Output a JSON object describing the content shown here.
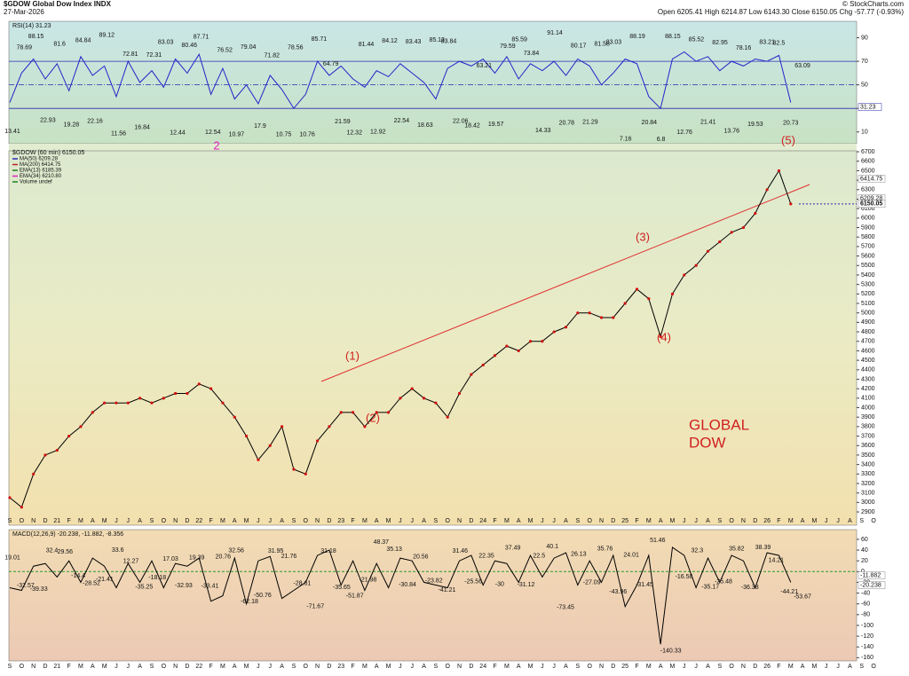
{
  "header": {
    "symbol": "$GDOW Global Dow Index INDX",
    "date": "27-Mar-2026",
    "quote": "Open 6205.41  High 6214.87  Low 6143.30  Close 6150.05  Chg -57.77 (-0.93%)",
    "credit": "© StockCharts.com"
  },
  "chart_data": [
    {
      "type": "line",
      "title": "RSI(14) 31.23",
      "color": "#2424c8",
      "values": [
        35,
        60,
        72,
        55,
        68,
        45,
        74,
        58,
        66,
        40,
        70,
        52,
        62,
        48,
        72,
        60,
        76,
        42,
        64,
        38,
        50,
        34,
        58,
        46,
        30,
        42,
        70,
        58,
        66,
        55,
        48,
        62,
        57,
        68,
        60,
        52,
        38,
        64,
        70,
        66,
        72,
        60,
        74,
        55,
        68,
        62,
        70,
        58,
        72,
        66,
        50,
        60,
        72,
        68,
        40,
        30,
        72,
        78,
        70,
        74,
        62,
        70,
        66,
        72,
        70,
        75,
        35,
        null,
        null,
        null,
        null,
        null,
        null,
        null
      ],
      "peak_labels": [
        13.41,
        78.69,
        88.15,
        22.93,
        81.6,
        19.28,
        84.84,
        22.16,
        89.12,
        11.56,
        72.81,
        16.84,
        72.31,
        83.03,
        12.44,
        80.46,
        87.71,
        12.54,
        76.52,
        10.97,
        79.04,
        17.9,
        71.82,
        10.75,
        78.56,
        10.76,
        85.71,
        64.79,
        21.59,
        12.32,
        81.44,
        12.92,
        84.12,
        22.54,
        83.43,
        18.63,
        85.13,
        83.84,
        22.06,
        18.42,
        63.21,
        19.57,
        79.59,
        85.59,
        73.84,
        14.33,
        91.14,
        20.78,
        80.17,
        21.29,
        81.58,
        83.03,
        7.16,
        88.19,
        20.84,
        6.8,
        88.15,
        12.76,
        85.52,
        21.41,
        82.95,
        13.76,
        78.16,
        19.53,
        83.21,
        82.5,
        20.73,
        63.09
      ],
      "last_value": 31.23,
      "ref_levels": [
        70,
        50,
        30
      ],
      "ylim": [
        0,
        104
      ],
      "yticks": [
        10,
        30,
        50,
        70,
        90
      ]
    },
    {
      "type": "line",
      "title": "$GDOW (60 min) 6150.05",
      "color": "#000000",
      "marker_color": "#d01010",
      "legend": [
        "MA(50) 6209.28",
        "MA(200) 6414.75",
        "EMA(13) 6185.39",
        "EMA(34) 6210.80",
        "Volume undef"
      ],
      "categories": [
        "S",
        "O",
        "N",
        "D",
        "21",
        "F",
        "M",
        "A",
        "M",
        "J",
        "J",
        "A",
        "S",
        "O",
        "N",
        "D",
        "22",
        "F",
        "M",
        "A",
        "M",
        "J",
        "J",
        "A",
        "S",
        "O",
        "N",
        "D",
        "23",
        "F",
        "M",
        "A",
        "M",
        "J",
        "J",
        "A",
        "S",
        "O",
        "N",
        "D",
        "24",
        "F",
        "M",
        "A",
        "M",
        "J",
        "J",
        "A",
        "S",
        "O",
        "N",
        "D",
        "25",
        "F",
        "M",
        "A",
        "M",
        "J",
        "J",
        "A",
        "S",
        "O",
        "N",
        "D",
        "26",
        "F",
        "M",
        "A",
        "M",
        "J",
        "J",
        "A",
        "S",
        "O"
      ],
      "values": [
        3050,
        2950,
        3300,
        3500,
        3550,
        3700,
        3800,
        3950,
        4050,
        4050,
        4050,
        4100,
        4050,
        4100,
        4150,
        4150,
        4250,
        4200,
        4050,
        3900,
        3700,
        3450,
        3600,
        3800,
        3350,
        3300,
        3650,
        3800,
        3950,
        3950,
        3800,
        3950,
        3950,
        4100,
        4200,
        4100,
        4050,
        3900,
        4150,
        4350,
        4450,
        4550,
        4650,
        4600,
        4700,
        4700,
        4800,
        4850,
        5000,
        5000,
        4950,
        4950,
        5100,
        5250,
        5150,
        4750,
        5200,
        5400,
        5500,
        5650,
        5750,
        5850,
        5900,
        6050,
        6300,
        6500,
        6150,
        null,
        null,
        null,
        null,
        null,
        null,
        null
      ],
      "last_values": [
        6414.75,
        6209.28,
        6150.05
      ],
      "wave_labels": [
        "(1)",
        "(2)",
        "(3)",
        "(4)",
        "(5)",
        "2"
      ],
      "watermark": [
        "GLOBAL",
        "DOW"
      ],
      "ylim": [
        2760,
        6710
      ],
      "yticks": [
        2900,
        3000,
        3100,
        3200,
        3300,
        3400,
        3500,
        3600,
        3700,
        3800,
        3900,
        4000,
        4100,
        4200,
        4300,
        4400,
        4500,
        4600,
        4700,
        4800,
        4900,
        5000,
        5100,
        5200,
        5300,
        5400,
        5500,
        5600,
        5700,
        5800,
        5900,
        6000,
        6100,
        6200,
        6300,
        6400,
        6500,
        6600,
        6700
      ]
    },
    {
      "type": "line",
      "title": "MACD(12,26,9) -20.238, -11.882, -8.356",
      "color": "#000000",
      "values": [
        -30,
        -35,
        10,
        15,
        -10,
        20,
        -20,
        25,
        10,
        -30,
        15,
        -20,
        20,
        -30,
        15,
        10,
        25,
        -55,
        -45,
        25,
        -60,
        20,
        28,
        -50,
        -35,
        -20,
        30,
        40,
        -25,
        20,
        -35,
        15,
        -30,
        25,
        20,
        -20,
        -25,
        -30,
        20,
        30,
        -25,
        20,
        15,
        -20,
        30,
        -10,
        25,
        35,
        -25,
        20,
        -20,
        30,
        -65,
        -25,
        30,
        -135,
        45,
        30,
        -30,
        25,
        -20,
        30,
        20,
        -30,
        35,
        30,
        -20,
        null,
        null,
        null,
        null,
        null,
        null,
        null
      ],
      "peak_labels": [
        19.01,
        -32.57,
        -39.33,
        32.4,
        29.56,
        -14.4,
        -28.52,
        -21.41,
        33.6,
        12.27,
        -35.25,
        -18.18,
        17.03,
        -32.93,
        19.39,
        -33.41,
        20.76,
        32.56,
        -62.18,
        -50.76,
        31.95,
        21.76,
        -28.61,
        -71.67,
        31.18,
        -35.65,
        -51.87,
        -21.98,
        48.37,
        35.13,
        -30.84,
        20.56,
        -23.82,
        -41.21,
        31.46,
        -25.56,
        22.35,
        -30.0,
        37.49,
        -31.12,
        22.5,
        40.1,
        -73.45,
        26.13,
        -27.09,
        35.76,
        -43.96,
        24.01,
        -31.45,
        51.46,
        -140.33,
        -16.58,
        32.3,
        -35.17,
        -25.48,
        35.82,
        -36.33,
        38.39,
        14.21,
        -44.21,
        -53.67
      ],
      "last_values": [
        -11.882,
        -20.238
      ],
      "ylim": [
        -166,
        78
      ],
      "yticks": [
        60,
        40,
        20,
        0,
        -20,
        -40,
        -60,
        -80,
        -100,
        -120,
        -140,
        -160
      ]
    }
  ]
}
